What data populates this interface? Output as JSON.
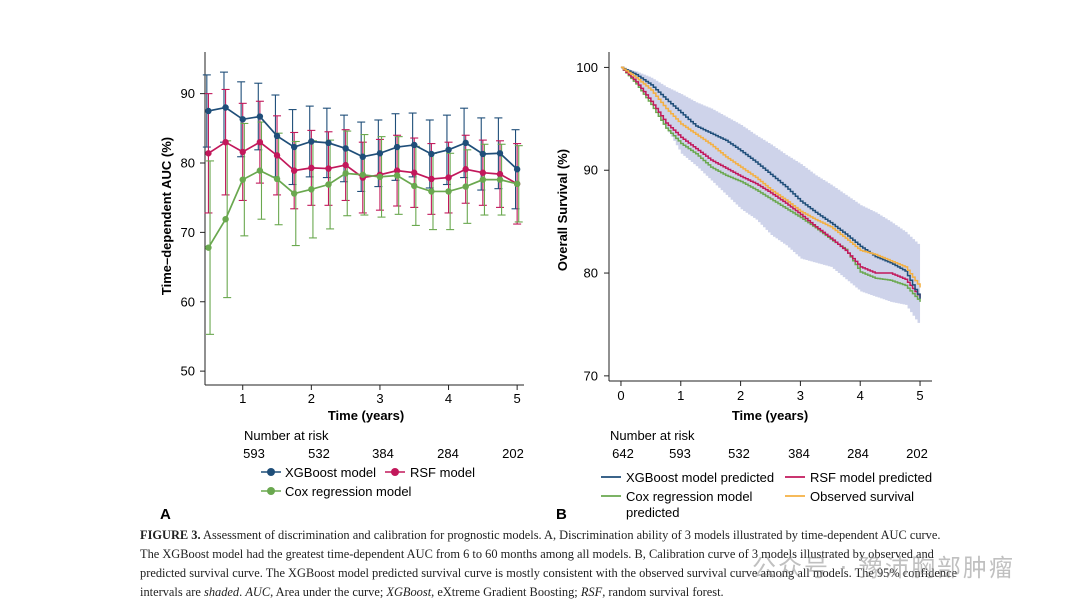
{
  "colors": {
    "xgboost": "#1f4e79",
    "rsf": "#c2185b",
    "cox": "#6aa84f",
    "observed": "#f4b042",
    "ci_band": "#c5cbe6"
  },
  "panel_a": {
    "label": "A",
    "xlabel": "Time (years)",
    "ylabel": "Time–dependent AUC (%)",
    "risk_title": "Number at risk",
    "risk_values": [
      "593",
      "532",
      "384",
      "284",
      "202"
    ],
    "legend": [
      "XGBoost model",
      "RSF model",
      "Cox regression model"
    ]
  },
  "panel_b": {
    "label": "B",
    "xlabel": "Time (years)",
    "ylabel": "Overall Survival (%)",
    "risk_title": "Number at risk",
    "risk_values": [
      "642",
      "593",
      "532",
      "384",
      "284",
      "202"
    ],
    "legend": [
      "XGBoost model predicted",
      "RSF model predicted",
      "Cox regression model predicted",
      "Observed survival"
    ]
  },
  "chart_data": [
    {
      "type": "line",
      "xlabel": "Time (years)",
      "ylabel": "Time–dependent AUC (%)",
      "xlim": [
        0.45,
        5.1
      ],
      "ylim": [
        48,
        96
      ],
      "xticks": [
        1,
        2,
        3,
        4,
        5
      ],
      "yticks": [
        50,
        60,
        70,
        80,
        90
      ],
      "x": [
        0.5,
        0.75,
        1.0,
        1.25,
        1.5,
        1.75,
        2.0,
        2.25,
        2.5,
        2.75,
        3.0,
        3.25,
        3.5,
        3.75,
        4.0,
        4.25,
        4.5,
        4.75,
        5.0
      ],
      "series": [
        {
          "name": "XGBoost model",
          "color": "#1f4e79",
          "values": [
            87.5,
            88.0,
            86.3,
            86.7,
            83.9,
            82.3,
            83.1,
            82.9,
            82.1,
            80.9,
            81.4,
            82.3,
            82.6,
            81.3,
            81.9,
            82.9,
            81.3,
            81.4,
            79.1
          ],
          "upper": [
            92.7,
            93.1,
            91.7,
            91.5,
            89.8,
            87.7,
            88.2,
            87.9,
            86.9,
            85.9,
            86.2,
            87.1,
            87.2,
            86.2,
            86.9,
            87.9,
            86.5,
            86.5,
            84.8
          ],
          "lower": [
            82.3,
            83.0,
            80.9,
            81.9,
            78.0,
            76.9,
            78.0,
            77.9,
            77.3,
            75.9,
            76.6,
            77.5,
            78.0,
            76.4,
            76.9,
            77.9,
            76.1,
            76.3,
            73.4
          ]
        },
        {
          "name": "RSF model",
          "color": "#c2185b",
          "values": [
            81.4,
            83.0,
            81.6,
            83.0,
            81.1,
            78.9,
            79.3,
            79.2,
            79.7,
            77.9,
            78.3,
            78.9,
            78.6,
            77.7,
            77.9,
            79.1,
            78.6,
            78.4,
            77.0
          ],
          "upper": [
            90.0,
            90.6,
            88.6,
            88.9,
            86.8,
            84.4,
            84.7,
            84.5,
            84.8,
            83.0,
            83.4,
            84.0,
            83.6,
            82.8,
            83.0,
            84.0,
            83.3,
            83.2,
            82.8
          ],
          "lower": [
            72.8,
            75.4,
            74.6,
            77.1,
            75.4,
            73.4,
            73.9,
            73.9,
            74.6,
            72.8,
            73.2,
            73.8,
            73.6,
            72.6,
            72.8,
            74.2,
            73.9,
            73.6,
            71.2
          ]
        },
        {
          "name": "Cox regression model",
          "color": "#6aa84f",
          "values": [
            67.8,
            71.9,
            77.6,
            78.9,
            77.7,
            75.6,
            76.2,
            76.9,
            78.5,
            78.3,
            78.0,
            78.2,
            76.7,
            75.9,
            75.9,
            76.6,
            77.6,
            77.6,
            77.0
          ],
          "upper": [
            80.3,
            83.2,
            85.7,
            85.9,
            84.3,
            83.1,
            83.2,
            83.3,
            84.6,
            84.1,
            83.8,
            83.8,
            82.4,
            81.4,
            81.4,
            81.9,
            82.7,
            82.7,
            82.5
          ],
          "lower": [
            55.3,
            60.6,
            69.5,
            71.9,
            71.1,
            68.1,
            69.2,
            70.5,
            72.4,
            72.5,
            72.2,
            72.6,
            71.0,
            70.4,
            70.4,
            71.3,
            72.5,
            72.5,
            71.5
          ]
        }
      ]
    },
    {
      "type": "line",
      "step": true,
      "xlabel": "Time (years)",
      "ylabel": "Overall Survival (%)",
      "xlim": [
        -0.2,
        5.2
      ],
      "ylim": [
        69.5,
        101.5
      ],
      "xticks": [
        0,
        1,
        2,
        3,
        4,
        5
      ],
      "yticks": [
        70,
        80,
        90,
        100
      ],
      "series": [
        {
          "name": "XGBoost model predicted",
          "color": "#1f4e79",
          "x": [
            0,
            0.25,
            0.5,
            0.75,
            1.0,
            1.25,
            1.5,
            1.75,
            2.0,
            2.25,
            2.5,
            2.75,
            3.0,
            3.25,
            3.5,
            3.75,
            4.0,
            4.25,
            4.5,
            4.75,
            5.0
          ],
          "values": [
            100,
            99.3,
            98.3,
            96.9,
            95.6,
            94.3,
            93.6,
            92.9,
            91.9,
            90.8,
            89.6,
            88.4,
            87.0,
            85.9,
            84.9,
            83.8,
            82.6,
            81.6,
            81.0,
            80.2,
            77.5
          ]
        },
        {
          "name": "RSF model predicted",
          "color": "#c2185b",
          "x": [
            0,
            0.25,
            0.5,
            0.75,
            1.0,
            1.25,
            1.5,
            1.75,
            2.0,
            2.25,
            2.5,
            2.75,
            3.0,
            3.25,
            3.5,
            3.75,
            4.0,
            4.25,
            4.5,
            4.75,
            5.0
          ],
          "values": [
            100,
            98.6,
            96.7,
            94.6,
            93.2,
            92.1,
            91.0,
            90.2,
            89.4,
            88.7,
            87.8,
            86.8,
            85.7,
            84.5,
            83.4,
            82.2,
            80.6,
            80.0,
            80.0,
            79.4,
            77.6
          ]
        },
        {
          "name": "Cox regression model predicted",
          "color": "#6aa84f",
          "x": [
            0,
            0.25,
            0.5,
            0.75,
            1.0,
            1.25,
            1.5,
            1.75,
            2.0,
            2.25,
            2.5,
            2.75,
            3.0,
            3.25,
            3.5,
            3.75,
            4.0,
            4.25,
            4.5,
            4.75,
            5.0
          ],
          "values": [
            100,
            98.4,
            96.4,
            94.1,
            92.6,
            91.6,
            90.3,
            89.5,
            88.9,
            88.1,
            87.2,
            86.3,
            85.4,
            84.4,
            83.3,
            82.3,
            80.1,
            79.5,
            79.3,
            78.8,
            77.2
          ]
        },
        {
          "name": "Observed survival",
          "color": "#f4b042",
          "x": [
            0,
            0.25,
            0.5,
            0.75,
            1.0,
            1.25,
            1.5,
            1.75,
            2.0,
            2.25,
            2.5,
            2.75,
            3.0,
            3.25,
            3.5,
            3.75,
            4.0,
            4.25,
            4.5,
            4.75,
            5.0
          ],
          "values": [
            100,
            99.0,
            97.8,
            96.0,
            94.5,
            93.5,
            92.5,
            91.3,
            90.3,
            89.3,
            88.1,
            87.1,
            86.0,
            85.2,
            84.5,
            83.4,
            82.2,
            81.8,
            81.2,
            80.6,
            78.6
          ],
          "ci_upper": [
            100,
            99.6,
            99.0,
            98.1,
            97.4,
            96.6,
            96.0,
            95.2,
            94.4,
            93.4,
            92.5,
            91.5,
            90.6,
            89.5,
            88.6,
            87.6,
            86.6,
            85.9,
            85.0,
            84.0,
            82.6
          ],
          "ci_lower": [
            100,
            98.4,
            96.6,
            94.1,
            91.6,
            90.4,
            89.0,
            87.6,
            86.2,
            85.2,
            83.7,
            82.7,
            81.4,
            81.0,
            80.6,
            79.4,
            78.2,
            77.7,
            77.2,
            76.9,
            74.8
          ]
        }
      ]
    }
  ],
  "caption": {
    "lead": "FIGURE 3.",
    "body1": "  Assessment of discrimination and calibration for prognostic models. A, Discrimination ability of 3 models illustrated by time-dependent AUC curve. The XGBoost model had the greatest time-dependent AUC from 6 to 60 months among all models. B, Calibration curve of 3 models illustrated by observed and predicted survival curve. The XGBoost model predicted survival curve is mostly consistent with the observed survival curve among all models. The 95% confidence intervals are ",
    "shaded": "shaded",
    "sep1": ". ",
    "auc": "AUC",
    "body2": ", Area under the curve; ",
    "xgb": "XGBoost",
    "body3": ", eXtreme Gradient Boosting; ",
    "rsf": "RSF",
    "body4": ", random survival forest."
  },
  "watermark": "公众号 · 豫沛胸部肿瘤"
}
